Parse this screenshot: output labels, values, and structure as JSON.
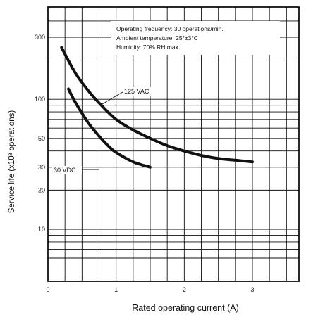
{
  "chart_data": {
    "type": "line",
    "xlabel": "Rated operating current (A)",
    "ylabel": "Service life (x10³ operations)",
    "x_ticks": [
      0,
      1,
      2,
      3
    ],
    "y_ticks": [
      10,
      20,
      30,
      50,
      100,
      300
    ],
    "xlim": [
      0,
      3.5
    ],
    "ylim": [
      5,
      500
    ],
    "y_scale": "log",
    "grid": true,
    "conditions": [
      "Operating frequency:  30 operations/min.",
      "Ambient temperature:  25°±3°C",
      "Humidity:  70% RH max."
    ],
    "series": [
      {
        "name": "125 VAC",
        "x": [
          0.2,
          0.4,
          0.6,
          0.8,
          1.0,
          1.25,
          1.5,
          1.75,
          2.0,
          2.25,
          2.5,
          2.75,
          3.0
        ],
        "y": [
          250,
          160,
          115,
          88,
          70,
          58,
          50,
          44,
          40,
          37,
          35,
          34,
          33
        ]
      },
      {
        "name": "30 VDC",
        "x": [
          0.3,
          0.4,
          0.5,
          0.6,
          0.75,
          0.9,
          1.0,
          1.25,
          1.5
        ],
        "y": [
          120,
          95,
          78,
          65,
          52,
          43,
          39,
          33,
          30
        ]
      }
    ]
  }
}
